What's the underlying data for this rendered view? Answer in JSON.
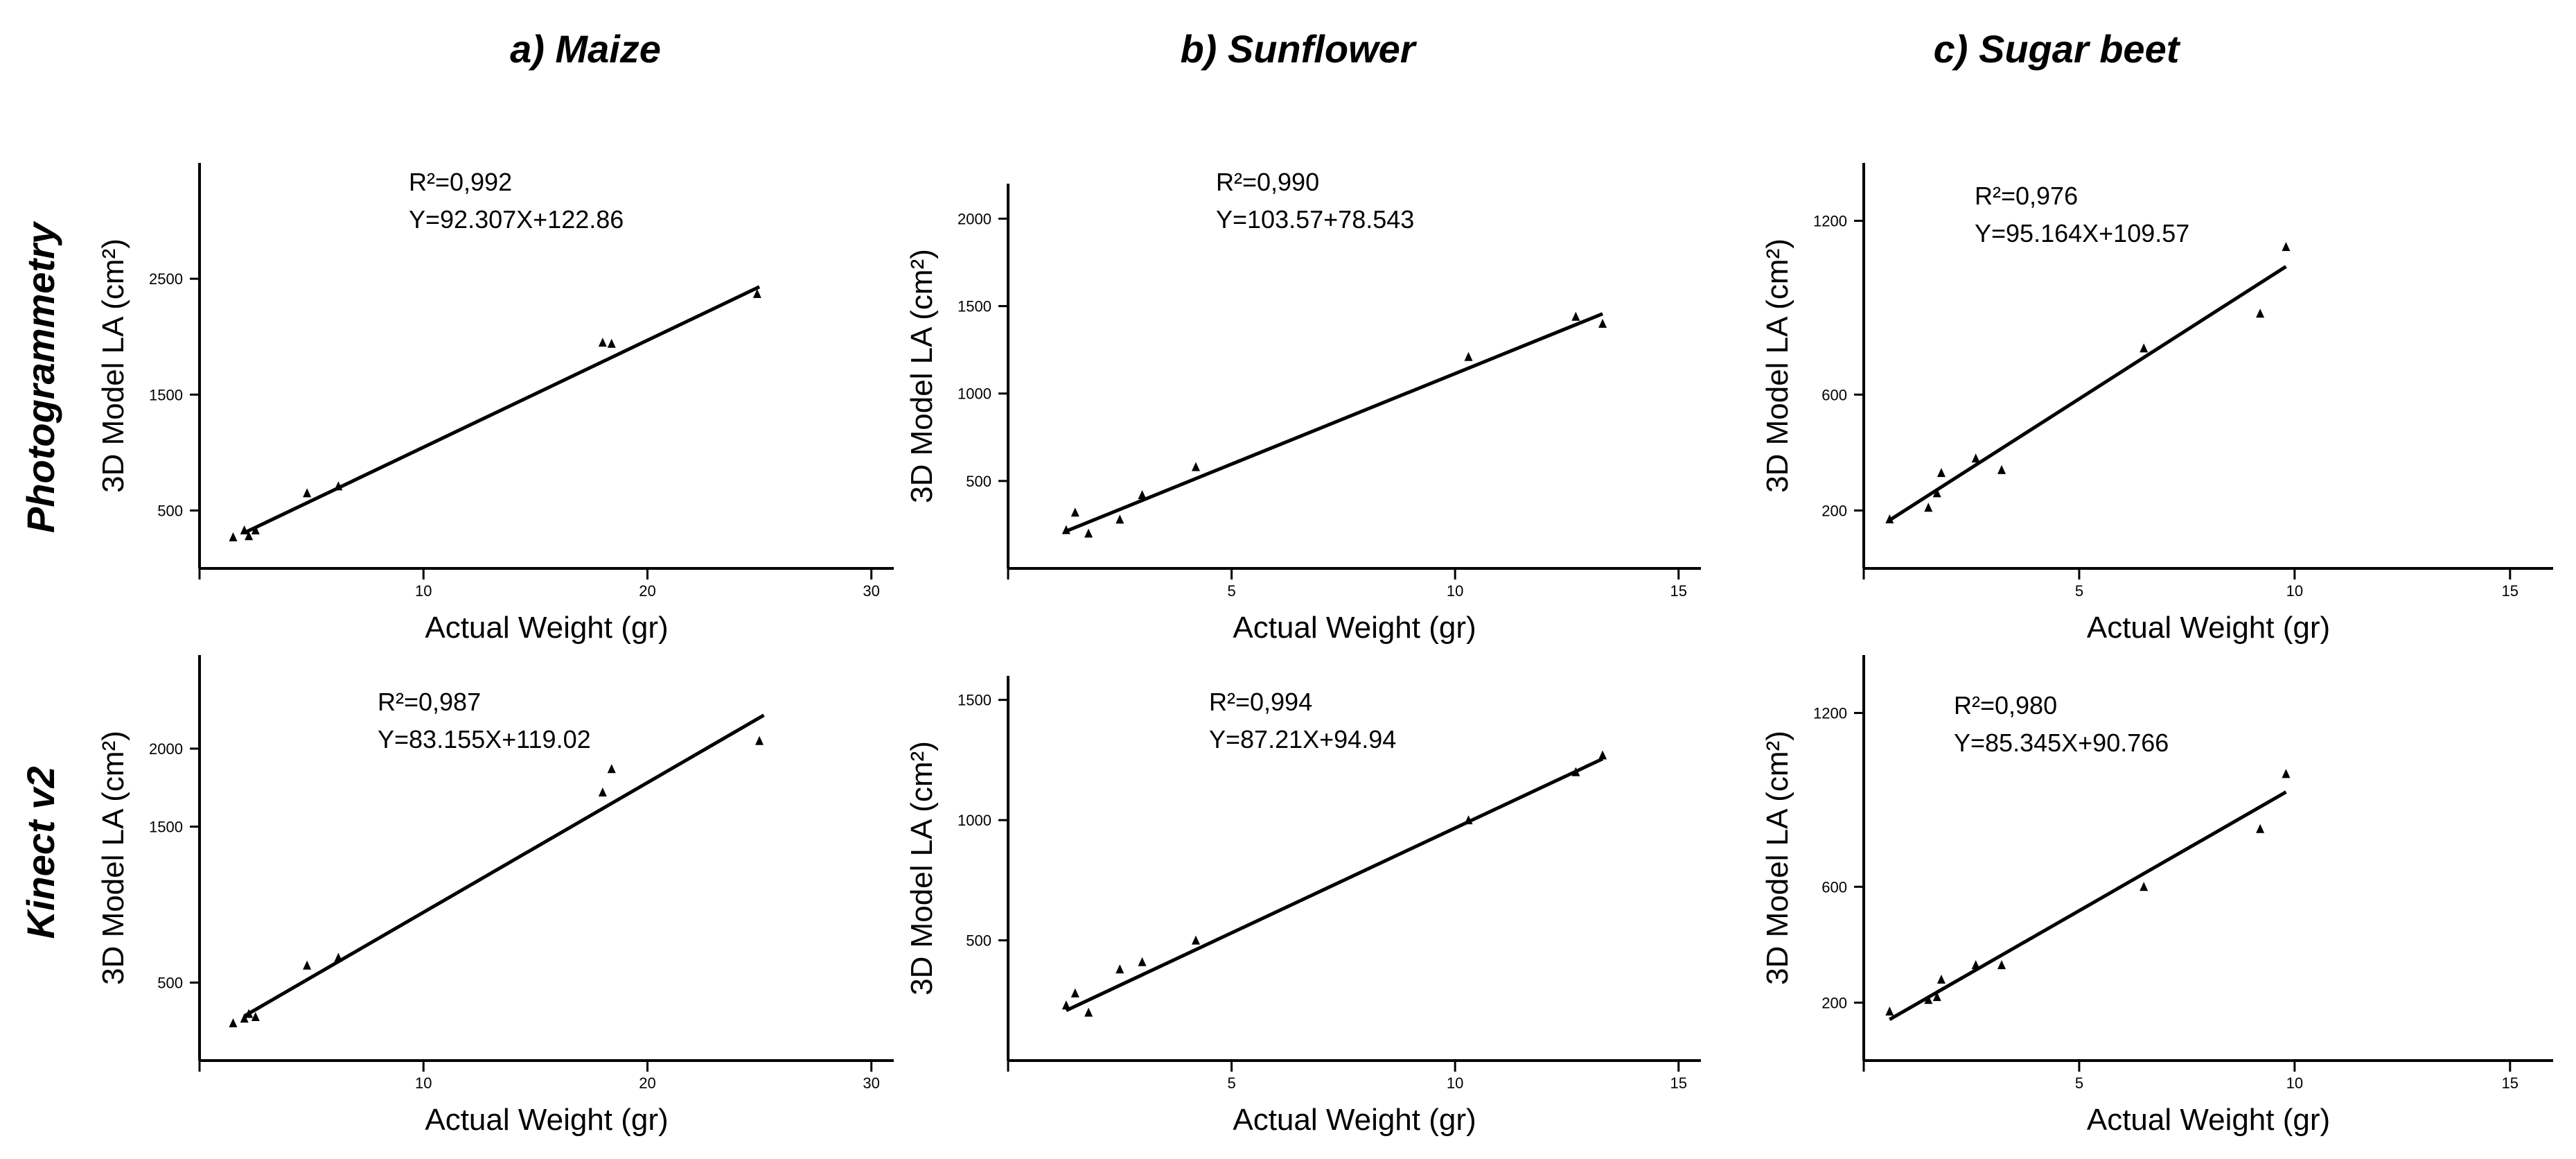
{
  "column_titles": [
    "a) Maize",
    "b) Sunflower",
    "c) Sugar beet"
  ],
  "row_titles": [
    "Photogrammetry",
    "Kinect v2"
  ],
  "chart_data": [
    {
      "type": "scatter",
      "crop": "Maize",
      "method": "Photogrammetry",
      "xlabel": "Actual Weight (gr)",
      "ylabel": "3D Model LA (cm²)",
      "xlim": [
        0,
        31
      ],
      "ylim": [
        0,
        3500
      ],
      "xticks": [
        10,
        20,
        30
      ],
      "yticks": [
        500,
        1500,
        2500
      ],
      "annotation": [
        "R²=0,992",
        "Y=92.307X+122.86"
      ],
      "fit": {
        "slope": 92.307,
        "intercept": 122.86,
        "x_range": [
          2,
          25
        ]
      },
      "points": [
        [
          1.5,
          270
        ],
        [
          2.0,
          330
        ],
        [
          2.2,
          280
        ],
        [
          2.5,
          330
        ],
        [
          4.8,
          650
        ],
        [
          6.2,
          710
        ],
        [
          18.0,
          1950
        ],
        [
          18.4,
          1940
        ],
        [
          24.9,
          2370
        ]
      ]
    },
    {
      "type": "scatter",
      "crop": "Sunflower",
      "method": "Photogrammetry",
      "xlabel": "Actual Weight (gr)",
      "ylabel": "3D Model LA (cm²)",
      "xlim": [
        0,
        15.5
      ],
      "ylim": [
        0,
        2200
      ],
      "xticks": [
        5,
        10,
        15
      ],
      "yticks": [
        500,
        1000,
        1500,
        2000
      ],
      "annotation": [
        "R²=0,990",
        "Y=103.57+78.543"
      ],
      "fit": {
        "slope": 103.57,
        "intercept": 78.543,
        "x_range": [
          1.3,
          13.3
        ]
      },
      "points": [
        [
          1.3,
          220
        ],
        [
          1.5,
          320
        ],
        [
          1.8,
          200
        ],
        [
          2.5,
          280
        ],
        [
          3.0,
          420
        ],
        [
          4.2,
          580
        ],
        [
          10.3,
          1210
        ],
        [
          12.7,
          1440
        ],
        [
          13.3,
          1400
        ]
      ]
    },
    {
      "type": "scatter",
      "crop": "Sugar beet",
      "method": "Photogrammetry",
      "xlabel": "Actual Weight (gr)",
      "ylabel": "3D Model LA (cm²)",
      "xlim": [
        0,
        16
      ],
      "ylim": [
        0,
        1400
      ],
      "xticks": [
        5,
        10,
        15
      ],
      "yticks": [
        200,
        600,
        1200
      ],
      "annotation": [
        "R²=0,976",
        "Y=95.164X+109.57"
      ],
      "fit": {
        "slope": 95.164,
        "intercept": 109.57,
        "x_range": [
          0.6,
          9.8
        ]
      },
      "points": [
        [
          0.6,
          170
        ],
        [
          1.5,
          210
        ],
        [
          1.7,
          260
        ],
        [
          1.8,
          330
        ],
        [
          2.6,
          380
        ],
        [
          3.2,
          340
        ],
        [
          6.5,
          760
        ],
        [
          9.2,
          880
        ],
        [
          9.8,
          1110
        ]
      ]
    },
    {
      "type": "scatter",
      "crop": "Maize",
      "method": "Kinect v2",
      "xlabel": "Actual Weight (gr)",
      "ylabel": "3D Model LA (cm²)",
      "xlim": [
        0,
        31
      ],
      "ylim": [
        0,
        2600
      ],
      "xticks": [
        10,
        20,
        30
      ],
      "yticks": [
        500,
        1500,
        2000
      ],
      "annotation": [
        "R²=0,987",
        "Y=83.155X+119.02"
      ],
      "fit": {
        "slope": 83.155,
        "intercept": 119.02,
        "x_range": [
          2,
          25.2
        ]
      },
      "points": [
        [
          1.5,
          240
        ],
        [
          2.0,
          270
        ],
        [
          2.2,
          300
        ],
        [
          2.5,
          280
        ],
        [
          4.8,
          610
        ],
        [
          6.2,
          660
        ],
        [
          18.0,
          1720
        ],
        [
          18.4,
          1870
        ],
        [
          25.0,
          2050
        ]
      ]
    },
    {
      "type": "scatter",
      "crop": "Sunflower",
      "method": "Kinect v2",
      "xlabel": "Actual Weight (gr)",
      "ylabel": "3D Model LA (cm²)",
      "xlim": [
        0,
        15.5
      ],
      "ylim": [
        0,
        1600
      ],
      "xticks": [
        5,
        10,
        15
      ],
      "yticks": [
        500,
        1000,
        1500
      ],
      "annotation": [
        "R²=0,994",
        "Y=87.21X+94.94"
      ],
      "fit": {
        "slope": 87.21,
        "intercept": 94.94,
        "x_range": [
          1.3,
          13.3
        ]
      },
      "points": [
        [
          1.3,
          230
        ],
        [
          1.5,
          280
        ],
        [
          1.8,
          200
        ],
        [
          2.5,
          380
        ],
        [
          3.0,
          410
        ],
        [
          4.2,
          500
        ],
        [
          10.3,
          1000
        ],
        [
          12.7,
          1200
        ],
        [
          13.3,
          1270
        ]
      ]
    },
    {
      "type": "scatter",
      "crop": "Sugar beet",
      "method": "Kinect v2",
      "xlabel": "Actual Weight (gr)",
      "ylabel": "3D Model LA (cm²)",
      "xlim": [
        0,
        16
      ],
      "ylim": [
        0,
        1400
      ],
      "xticks": [
        5,
        10,
        15
      ],
      "yticks": [
        200,
        600,
        1200
      ],
      "annotation": [
        "R²=0,980",
        "Y=85.345X+90.766"
      ],
      "fit": {
        "slope": 85.345,
        "intercept": 90.766,
        "x_range": [
          0.6,
          9.8
        ]
      },
      "points": [
        [
          0.6,
          170
        ],
        [
          1.5,
          210
        ],
        [
          1.7,
          220
        ],
        [
          1.8,
          280
        ],
        [
          2.6,
          330
        ],
        [
          3.2,
          330
        ],
        [
          6.5,
          600
        ],
        [
          9.2,
          800
        ],
        [
          9.8,
          990
        ]
      ]
    }
  ]
}
